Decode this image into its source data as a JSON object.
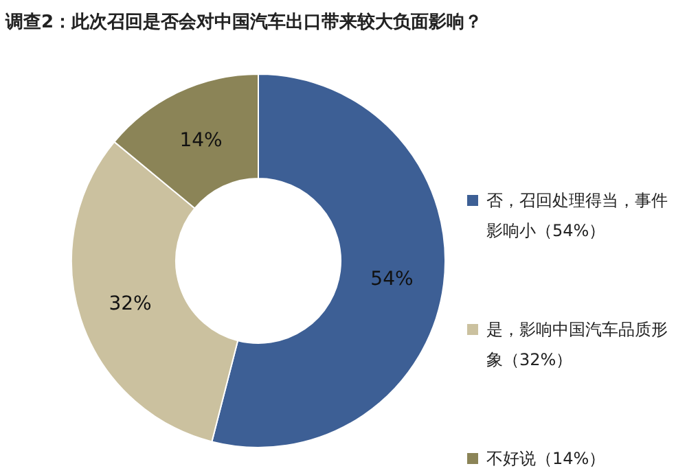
{
  "chart_data": {
    "type": "donut",
    "title": "调查2：此次召回是否会对中国汽车出口带来较大负面影响？",
    "categories": [
      "否，召回处理得当，事件影响小（54%）",
      "是，影响中国汽车品质形象（32%）",
      "不好说（14%）"
    ],
    "values": [
      54,
      32,
      14
    ],
    "colors": [
      "#3d5f95",
      "#cbc19f",
      "#8b8457"
    ],
    "value_labels": [
      "54%",
      "32%",
      "14%"
    ],
    "legend": "right"
  }
}
